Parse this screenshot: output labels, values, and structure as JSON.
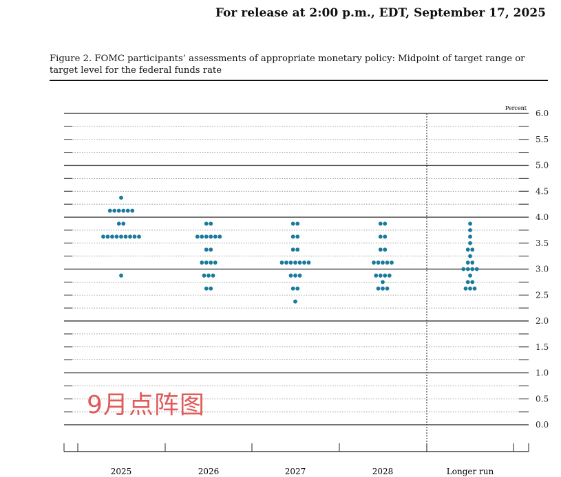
{
  "header": {
    "release": "For release at 2:00 p.m., EDT, September 17, 2025"
  },
  "figure": {
    "title": "Figure 2. FOMC participants’ assessments of appropriate monetary policy: Midpoint of target range or target level for the federal funds rate"
  },
  "watermark": "9月点阵图",
  "chart_data": {
    "type": "scatter",
    "ylabel": "Percent",
    "ylim": [
      0,
      6
    ],
    "yticks": [
      "0.0",
      "0.5",
      "1.0",
      "1.5",
      "2.0",
      "2.5",
      "3.0",
      "3.5",
      "4.0",
      "4.5",
      "5.0",
      "5.5",
      "6.0"
    ],
    "categories": [
      "2025",
      "2026",
      "2027",
      "2028",
      "Longer run"
    ],
    "dot_color": "#1a7a9c",
    "dots": [
      {
        "category": "2025",
        "counts": [
          [
            4.375,
            1
          ],
          [
            4.125,
            6
          ],
          [
            3.875,
            2
          ],
          [
            3.625,
            9
          ],
          [
            2.875,
            1
          ]
        ]
      },
      {
        "category": "2026",
        "counts": [
          [
            3.875,
            2
          ],
          [
            3.625,
            6
          ],
          [
            3.375,
            2
          ],
          [
            3.125,
            4
          ],
          [
            2.875,
            3
          ],
          [
            2.625,
            2
          ]
        ]
      },
      {
        "category": "2027",
        "counts": [
          [
            3.875,
            2
          ],
          [
            3.625,
            2
          ],
          [
            3.375,
            2
          ],
          [
            3.125,
            7
          ],
          [
            2.875,
            3
          ],
          [
            2.625,
            2
          ],
          [
            2.375,
            1
          ]
        ]
      },
      {
        "category": "2028",
        "counts": [
          [
            3.875,
            2
          ],
          [
            3.625,
            2
          ],
          [
            3.375,
            2
          ],
          [
            3.125,
            5
          ],
          [
            2.875,
            4
          ],
          [
            2.75,
            1
          ],
          [
            2.625,
            3
          ]
        ]
      },
      {
        "category": "Longer run",
        "counts": [
          [
            3.875,
            1
          ],
          [
            3.75,
            1
          ],
          [
            3.625,
            1
          ],
          [
            3.5,
            1
          ],
          [
            3.375,
            2
          ],
          [
            3.25,
            1
          ],
          [
            3.125,
            2
          ],
          [
            3.0,
            4
          ],
          [
            2.875,
            1
          ],
          [
            2.75,
            2
          ],
          [
            2.625,
            3
          ]
        ]
      }
    ]
  }
}
